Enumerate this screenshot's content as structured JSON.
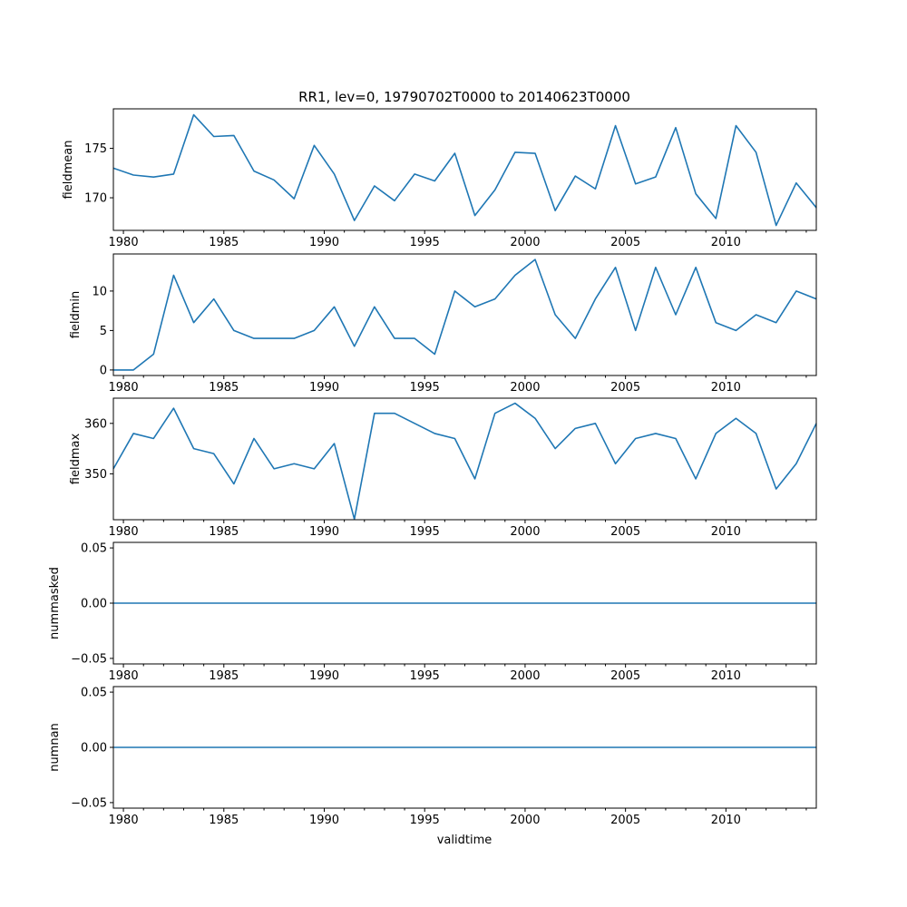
{
  "title": "RR1, lev=0, 19790702T0000 to 20140623T0000",
  "xlabel": "validtime",
  "line_color": "#1f77b4",
  "chart_data": [
    {
      "type": "line",
      "ylabel": "fieldmean",
      "x": [
        1979.5,
        1980.5,
        1981.5,
        1982.5,
        1983.5,
        1984.5,
        1985.5,
        1986.5,
        1987.5,
        1988.5,
        1989.5,
        1990.5,
        1991.5,
        1992.5,
        1993.5,
        1994.5,
        1995.5,
        1996.5,
        1997.5,
        1998.5,
        1999.5,
        2000.5,
        2001.5,
        2002.5,
        2003.5,
        2004.5,
        2005.5,
        2006.5,
        2007.5,
        2008.5,
        2009.5,
        2010.5,
        2011.5,
        2012.5,
        2013.5,
        2014.5
      ],
      "y": [
        173.0,
        172.3,
        172.1,
        172.4,
        178.4,
        176.2,
        176.3,
        172.7,
        171.8,
        169.9,
        175.3,
        172.4,
        167.7,
        171.2,
        169.7,
        172.4,
        171.7,
        174.5,
        168.2,
        170.8,
        174.6,
        174.5,
        168.7,
        172.2,
        170.9,
        177.3,
        171.4,
        172.1,
        177.1,
        170.4,
        167.9,
        177.3,
        174.6,
        167.2,
        171.5,
        169.0
      ],
      "xlim": [
        1979.5,
        2014.5
      ],
      "ylim": [
        166.7,
        179.0
      ],
      "yticks": [
        170,
        175
      ],
      "ytick_labels": [
        "170",
        "175"
      ]
    },
    {
      "type": "line",
      "ylabel": "fieldmin",
      "x": [
        1979.5,
        1980.5,
        1981.5,
        1982.5,
        1983.5,
        1984.5,
        1985.5,
        1986.5,
        1987.5,
        1988.5,
        1989.5,
        1990.5,
        1991.5,
        1992.5,
        1993.5,
        1994.5,
        1995.5,
        1996.5,
        1997.5,
        1998.5,
        1999.5,
        2000.5,
        2001.5,
        2002.5,
        2003.5,
        2004.5,
        2005.5,
        2006.5,
        2007.5,
        2008.5,
        2009.5,
        2010.5,
        2011.5,
        2012.5,
        2013.5,
        2014.5
      ],
      "y": [
        0,
        0,
        2,
        12,
        6,
        9,
        5,
        4,
        4,
        4,
        5,
        8,
        3,
        8,
        4,
        4,
        2,
        10,
        8,
        9,
        12,
        14,
        7,
        4,
        9,
        13,
        5,
        13,
        7,
        13,
        6,
        5,
        7,
        6,
        10,
        9
      ],
      "xlim": [
        1979.5,
        2014.5
      ],
      "ylim": [
        -0.7,
        14.7
      ],
      "yticks": [
        0,
        5,
        10
      ],
      "ytick_labels": [
        "0",
        "5",
        "10"
      ]
    },
    {
      "type": "line",
      "ylabel": "fieldmax",
      "x": [
        1979.5,
        1980.5,
        1981.5,
        1982.5,
        1983.5,
        1984.5,
        1985.5,
        1986.5,
        1987.5,
        1988.5,
        1989.5,
        1990.5,
        1991.5,
        1992.5,
        1993.5,
        1994.5,
        1995.5,
        1996.5,
        1997.5,
        1998.5,
        1999.5,
        2000.5,
        2001.5,
        2002.5,
        2003.5,
        2004.5,
        2005.5,
        2006.5,
        2007.5,
        2008.5,
        2009.5,
        2010.5,
        2011.5,
        2012.5,
        2013.5,
        2014.5
      ],
      "y": [
        351,
        358,
        357,
        363,
        355,
        354,
        348,
        357,
        351,
        352,
        351,
        356,
        341,
        362,
        362,
        360,
        358,
        357,
        349,
        362,
        364,
        361,
        355,
        359,
        360,
        352,
        357,
        358,
        357,
        349,
        358,
        361,
        358,
        347,
        352,
        360
      ],
      "xlim": [
        1979.5,
        2014.5
      ],
      "ylim": [
        340.9,
        365.0
      ],
      "yticks": [
        350,
        360
      ],
      "ytick_labels": [
        "350",
        "360"
      ]
    },
    {
      "type": "line",
      "ylabel": "nummasked",
      "x": [
        1979.5,
        2014.5
      ],
      "y": [
        0,
        0
      ],
      "xlim": [
        1979.5,
        2014.5
      ],
      "ylim": [
        -0.055,
        0.055
      ],
      "yticks": [
        -0.05,
        0.0,
        0.05
      ],
      "ytick_labels": [
        "−0.05",
        "0.00",
        "0.05"
      ]
    },
    {
      "type": "line",
      "ylabel": "numnan",
      "x": [
        1979.5,
        2014.5
      ],
      "y": [
        0,
        0
      ],
      "xlim": [
        1979.5,
        2014.5
      ],
      "ylim": [
        -0.055,
        0.055
      ],
      "yticks": [
        -0.05,
        0.0,
        0.05
      ],
      "ytick_labels": [
        "−0.05",
        "0.00",
        "0.05"
      ]
    }
  ],
  "xticks": [
    1980,
    1985,
    1990,
    1995,
    2000,
    2005,
    2010
  ],
  "xtick_labels": [
    "1980",
    "1985",
    "1990",
    "1995",
    "2000",
    "2005",
    "2010"
  ],
  "minor_xticks": [
    1981,
    1982,
    1983,
    1984,
    1986,
    1987,
    1988,
    1989,
    1991,
    1992,
    1993,
    1994,
    1996,
    1997,
    1998,
    1999,
    2001,
    2002,
    2003,
    2004,
    2006,
    2007,
    2008,
    2009,
    2011,
    2012,
    2013,
    2014
  ]
}
